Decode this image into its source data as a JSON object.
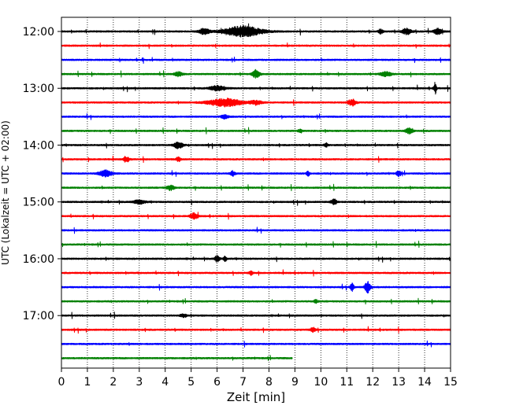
{
  "chart_data": {
    "type": "line",
    "subtype": "helicorder-seismogram",
    "xlabel": "Zeit  [min]",
    "ylabel": "UTC (Lokalzeit = UTC + 02:00)",
    "xlim": [
      0,
      15
    ],
    "x_ticks": [
      0,
      1,
      2,
      3,
      4,
      5,
      6,
      7,
      8,
      9,
      10,
      11,
      12,
      13,
      14,
      15
    ],
    "x_tick_labels": [
      "0",
      "1",
      "2",
      "3",
      "4",
      "5",
      "6",
      "7",
      "8",
      "9",
      "10",
      "11",
      "12",
      "13",
      "14",
      "15"
    ],
    "y_tick_labels": [
      "12:00",
      "13:00",
      "14:00",
      "15:00",
      "16:00",
      "17:00"
    ],
    "y_tick_row_index": [
      0,
      4,
      8,
      12,
      16,
      20
    ],
    "row_start_times": [
      "12:00",
      "12:15",
      "12:30",
      "12:45",
      "13:00",
      "13:15",
      "13:30",
      "13:45",
      "14:00",
      "14:15",
      "14:30",
      "14:45",
      "15:00",
      "15:15",
      "15:30",
      "15:45",
      "16:00",
      "16:15",
      "16:30",
      "16:45",
      "17:00",
      "17:15",
      "17:30",
      "17:45"
    ],
    "row_duration_min": 15,
    "color_cycle": [
      "#000000",
      "#ff0000",
      "#0000ff",
      "#008000"
    ],
    "grid": "vertical-dotted",
    "last_row_end_min": 8.9,
    "events": [
      {
        "row": 0,
        "x": 7.0,
        "amp": 3.0,
        "width": 1.0
      },
      {
        "row": 0,
        "x": 5.5,
        "amp": 1.5,
        "width": 0.3
      },
      {
        "row": 0,
        "x": 13.3,
        "amp": 1.6,
        "width": 0.25
      },
      {
        "row": 0,
        "x": 14.5,
        "amp": 1.6,
        "width": 0.2
      },
      {
        "row": 0,
        "x": 12.3,
        "amp": 1.3,
        "width": 0.12
      },
      {
        "row": 3,
        "x": 7.5,
        "amp": 2.5,
        "width": 0.18
      },
      {
        "row": 3,
        "x": 4.5,
        "amp": 1.3,
        "width": 0.2
      },
      {
        "row": 3,
        "x": 12.5,
        "amp": 1.2,
        "width": 0.3
      },
      {
        "row": 4,
        "x": 14.4,
        "amp": 3.2,
        "width": 0.07
      },
      {
        "row": 4,
        "x": 6.0,
        "amp": 1.3,
        "width": 0.4
      },
      {
        "row": 5,
        "x": 6.3,
        "amp": 2.2,
        "width": 0.9
      },
      {
        "row": 5,
        "x": 11.2,
        "amp": 1.8,
        "width": 0.22
      },
      {
        "row": 5,
        "x": 7.5,
        "amp": 1.2,
        "width": 0.3
      },
      {
        "row": 6,
        "x": 6.3,
        "amp": 1.1,
        "width": 0.2
      },
      {
        "row": 7,
        "x": 13.4,
        "amp": 1.6,
        "width": 0.18
      },
      {
        "row": 7,
        "x": 9.2,
        "amp": 1.1,
        "width": 0.1
      },
      {
        "row": 8,
        "x": 4.5,
        "amp": 1.8,
        "width": 0.25
      },
      {
        "row": 8,
        "x": 10.2,
        "amp": 1.1,
        "width": 0.1
      },
      {
        "row": 9,
        "x": 2.5,
        "amp": 1.4,
        "width": 0.15
      },
      {
        "row": 9,
        "x": 4.5,
        "amp": 1.2,
        "width": 0.12
      },
      {
        "row": 10,
        "x": 1.7,
        "amp": 1.8,
        "width": 0.35
      },
      {
        "row": 10,
        "x": 13.0,
        "amp": 1.5,
        "width": 0.12
      },
      {
        "row": 10,
        "x": 6.6,
        "amp": 1.4,
        "width": 0.12
      },
      {
        "row": 10,
        "x": 9.5,
        "amp": 1.4,
        "width": 0.08
      },
      {
        "row": 11,
        "x": 4.2,
        "amp": 1.3,
        "width": 0.2
      },
      {
        "row": 12,
        "x": 10.5,
        "amp": 1.6,
        "width": 0.15
      },
      {
        "row": 12,
        "x": 3.0,
        "amp": 1.1,
        "width": 0.3
      },
      {
        "row": 13,
        "x": 5.1,
        "amp": 1.6,
        "width": 0.2
      },
      {
        "row": 16,
        "x": 6.0,
        "amp": 1.9,
        "width": 0.12
      },
      {
        "row": 16,
        "x": 6.3,
        "amp": 1.5,
        "width": 0.08
      },
      {
        "row": 17,
        "x": 7.3,
        "amp": 1.1,
        "width": 0.1
      },
      {
        "row": 18,
        "x": 11.8,
        "amp": 3.2,
        "width": 0.15
      },
      {
        "row": 18,
        "x": 11.2,
        "amp": 2.4,
        "width": 0.1
      },
      {
        "row": 19,
        "x": 9.8,
        "amp": 1.1,
        "width": 0.1
      },
      {
        "row": 20,
        "x": 4.7,
        "amp": 1.0,
        "width": 0.15
      },
      {
        "row": 21,
        "x": 9.7,
        "amp": 1.2,
        "width": 0.15
      }
    ]
  }
}
